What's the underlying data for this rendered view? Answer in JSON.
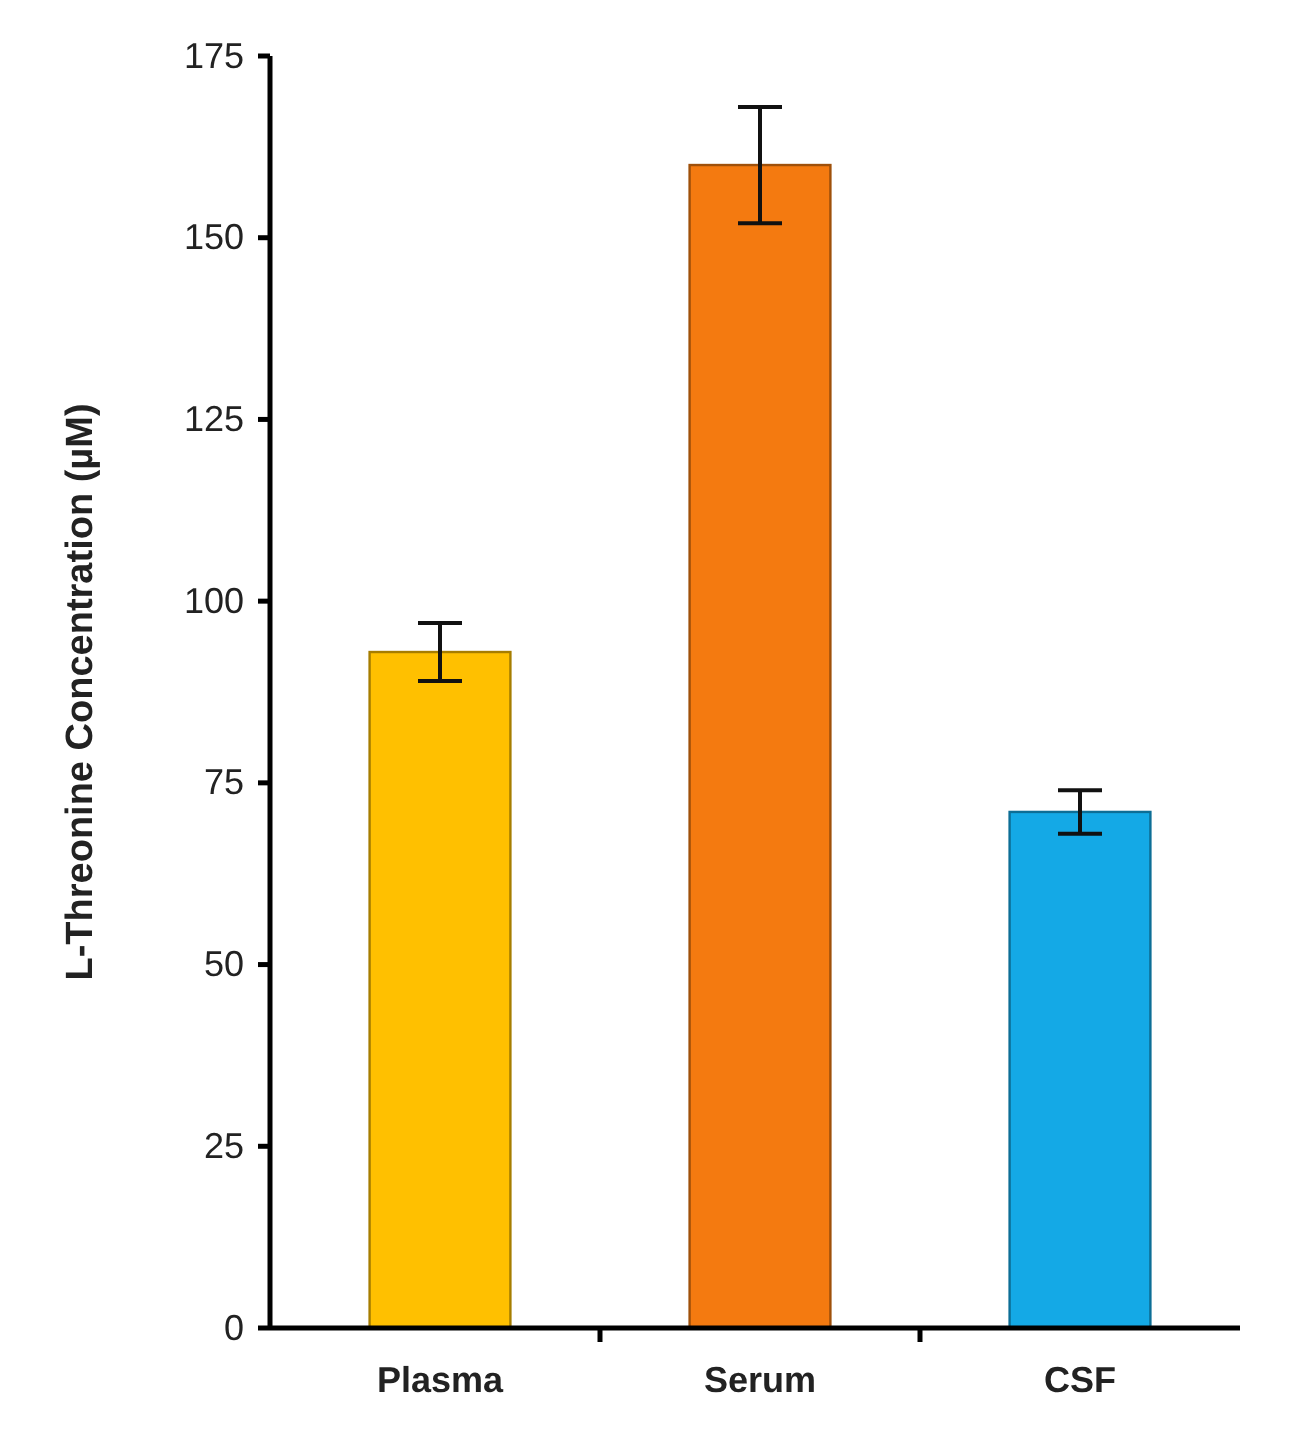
{
  "chart_data": {
    "type": "bar",
    "ylabel": "L-Threonine Concentration (µM)",
    "categories": [
      "Plasma",
      "Serum",
      "CSF"
    ],
    "values": [
      93,
      160,
      71
    ],
    "colors": [
      "#ffc000",
      "#f47a10",
      "#14a9e6"
    ],
    "errors": [
      4,
      8,
      3
    ],
    "ylim": [
      0,
      175
    ],
    "yticks": [
      0,
      25,
      50,
      75,
      100,
      125,
      150,
      175
    ],
    "grid": false
  }
}
